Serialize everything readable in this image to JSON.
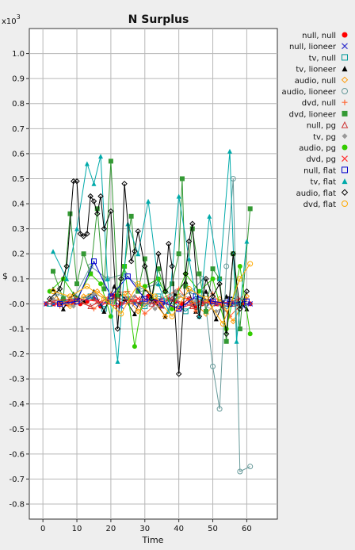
{
  "chart_data": {
    "type": "line",
    "title": "N Surplus",
    "xlabel": "Time",
    "ylabel": "$",
    "y_multiplier": "x10",
    "y_multiplier_exp": "3",
    "xlim": [
      -4,
      69
    ],
    "ylim": [
      -0.86,
      1.1
    ],
    "x_ticks": [
      0,
      10,
      20,
      30,
      40,
      50,
      60
    ],
    "y_ticks": [
      1.0,
      0.9,
      0.8,
      0.7,
      0.6,
      0.5,
      0.4,
      0.3,
      0.2,
      0.1,
      0.0,
      -0.1,
      -0.2,
      -0.3,
      -0.4,
      -0.5,
      -0.6,
      -0.7,
      -0.8
    ],
    "y_tick_labels": [
      "1.0",
      "0.9",
      "0.8",
      "0.7",
      "0.6",
      "0.5",
      "0.4",
      "0.3",
      "0.2",
      "0.1",
      "-0.0",
      "-0.1",
      "-0.2",
      "-0.3",
      "-0.4",
      "-0.5",
      "-0.6",
      "-0.7",
      "-0.8"
    ],
    "grid": true,
    "legend_position": "right",
    "series": [
      {
        "name": "null, null",
        "color": "#ff0000",
        "marker": "circle-filled",
        "x": [
          1,
          3,
          5,
          7,
          9,
          11,
          13,
          15,
          17,
          19,
          21,
          23,
          25,
          27,
          29,
          31,
          33,
          35,
          37,
          39,
          41,
          43,
          45,
          47,
          49,
          51,
          53,
          55,
          57,
          59,
          61
        ],
        "y": [
          0,
          0,
          0,
          0,
          0,
          0,
          0.01,
          0.02,
          -0.01,
          0.01,
          0.03,
          0,
          0.02,
          0.01,
          0,
          0.03,
          0.01,
          -0.01,
          0.02,
          0.01,
          0,
          0.02,
          -0.01,
          0,
          0.01,
          0,
          -0.01,
          0,
          0,
          0,
          0
        ]
      },
      {
        "name": "null, lioneer",
        "color": "#3333cc",
        "marker": "x",
        "x": [
          1,
          3,
          5,
          7,
          9,
          11,
          13,
          15,
          17,
          19,
          21,
          23,
          25,
          27,
          29,
          31,
          33,
          35,
          37,
          39,
          41,
          43,
          45,
          47,
          49,
          51,
          53,
          55,
          57,
          59,
          61
        ],
        "y": [
          0,
          0,
          0,
          0,
          0.01,
          0.01,
          0.02,
          0.03,
          0,
          0.01,
          0.01,
          -0.01,
          0.02,
          0,
          0.01,
          0.01,
          0,
          -0.01,
          0.01,
          0.02,
          -0.02,
          0.01,
          0,
          0.01,
          0,
          0,
          0.01,
          0.02,
          0,
          -0.01,
          0
        ]
      },
      {
        "name": "tv, null",
        "color": "#009999",
        "marker": "square-open",
        "x": [
          2,
          6,
          10,
          14,
          18,
          22,
          26,
          30,
          34,
          38,
          42,
          46,
          50,
          54,
          58
        ],
        "y": [
          0,
          0.01,
          0.02,
          0.03,
          -0.02,
          0.04,
          0.01,
          -0.01,
          0.03,
          0.01,
          -0.03,
          0.02,
          0.01,
          -0.02,
          0.01
        ]
      },
      {
        "name": "tv, lioneer",
        "color": "#000000",
        "marker": "triangle-filled",
        "x": [
          3,
          6,
          9,
          12,
          15,
          18,
          21,
          24,
          27,
          30,
          33,
          36,
          39,
          42,
          45,
          48,
          51,
          54,
          57,
          60
        ],
        "y": [
          0.06,
          -0.02,
          0.04,
          0.01,
          0.05,
          -0.03,
          0.07,
          0.02,
          -0.04,
          0.06,
          0.01,
          -0.05,
          0.04,
          0.09,
          -0.03,
          0.05,
          -0.06,
          0.03,
          0.02,
          -0.02
        ]
      },
      {
        "name": "audio, null",
        "color": "#ff9900",
        "marker": "diamond-open",
        "x": [
          4,
          8,
          12,
          16,
          20,
          24,
          28,
          32,
          36,
          40,
          44,
          48,
          52,
          56,
          60
        ],
        "y": [
          0.02,
          -0.01,
          0.03,
          0.05,
          0.01,
          0.04,
          -0.03,
          0.02,
          -0.05,
          0.03,
          0.01,
          -0.04,
          0.02,
          -0.07,
          0.03
        ]
      },
      {
        "name": "audio, lioneer",
        "color": "#669999",
        "marker": "circle-open",
        "x": [
          4,
          9,
          14,
          19,
          24,
          29,
          34,
          39,
          44,
          47,
          50,
          52,
          54,
          56,
          58,
          61
        ],
        "y": [
          0.04,
          0.02,
          0.15,
          0.1,
          0.12,
          0.06,
          0.08,
          0.02,
          0.05,
          0.1,
          -0.25,
          -0.42,
          0.15,
          0.5,
          -0.67,
          -0.65
        ]
      },
      {
        "name": "dvd, null",
        "color": "#ff6633",
        "marker": "plus",
        "x": [
          5,
          10,
          15,
          20,
          25,
          30,
          35,
          40,
          45,
          50,
          55,
          60
        ],
        "y": [
          -0.01,
          0.02,
          -0.02,
          0.04,
          0.05,
          -0.04,
          0.02,
          0.06,
          -0.03,
          0.04,
          -0.05,
          0.02
        ]
      },
      {
        "name": "dvd, lioneer",
        "color": "#339933",
        "marker": "square-filled",
        "x": [
          3,
          6,
          8,
          10,
          12,
          14,
          16,
          18,
          20,
          22,
          24,
          26,
          28,
          30,
          32,
          34,
          36,
          38,
          40,
          41,
          42,
          44,
          46,
          48,
          50,
          52,
          54,
          56,
          58,
          61
        ],
        "y": [
          0.13,
          0.02,
          0.36,
          0.08,
          0.2,
          0.12,
          0.38,
          0.06,
          0.57,
          0.03,
          0.15,
          0.35,
          0.05,
          0.18,
          0.02,
          0.14,
          0.05,
          0.08,
          0.2,
          0.5,
          0.07,
          0.3,
          0.12,
          -0.03,
          0.14,
          0.1,
          -0.15,
          0.2,
          -0.1,
          0.38
        ]
      },
      {
        "name": "null, pg",
        "color": "#cc3333",
        "marker": "triangle-open",
        "x": [
          2,
          8,
          14,
          20,
          26,
          32,
          38,
          44,
          50,
          56
        ],
        "y": [
          0.01,
          0.02,
          -0.01,
          0.03,
          0.01,
          0,
          0.02,
          -0.01,
          0.01,
          0
        ]
      },
      {
        "name": "tv, pg",
        "color": "#999999",
        "marker": "diamond-filled",
        "x": [
          3,
          9,
          15,
          21,
          27,
          33,
          39,
          45,
          51,
          57
        ],
        "y": [
          0.02,
          -0.01,
          0.04,
          0.01,
          0.03,
          -0.02,
          0.05,
          0.01,
          -0.03,
          0.02
        ]
      },
      {
        "name": "audio, pg",
        "color": "#33cc00",
        "marker": "circle-filled",
        "x": [
          2,
          6,
          10,
          14,
          17,
          20,
          24,
          27,
          30,
          34,
          38,
          42,
          46,
          50,
          54,
          58,
          61
        ],
        "y": [
          0.05,
          0.1,
          0.02,
          0.12,
          0.08,
          -0.05,
          0.15,
          -0.17,
          0.07,
          0.1,
          -0.02,
          0.12,
          0.05,
          0.1,
          -0.1,
          0.15,
          -0.12
        ]
      },
      {
        "name": "dvd, pg",
        "color": "#ff3333",
        "marker": "x",
        "x": [
          4,
          10,
          16,
          22,
          28,
          34,
          40,
          46,
          52,
          58
        ],
        "y": [
          0,
          0.02,
          0.01,
          -0.01,
          0.02,
          0.01,
          -0.02,
          0.01,
          0,
          0.02
        ]
      },
      {
        "name": "null, flat",
        "color": "#0000cc",
        "marker": "square-open",
        "x": [
          5,
          10,
          15,
          20,
          25,
          30,
          35,
          40,
          45,
          50,
          55,
          60
        ],
        "y": [
          0,
          0.01,
          0.17,
          0.03,
          0.11,
          0.02,
          0.01,
          -0.02,
          0.03,
          0.01,
          0,
          0.01
        ]
      },
      {
        "name": "tv, flat",
        "color": "#00aaaa",
        "marker": "triangle-filled",
        "x": [
          3,
          7,
          10,
          13,
          15,
          17,
          19,
          22,
          25,
          28,
          31,
          34,
          37,
          40,
          43,
          46,
          49,
          52,
          55,
          57,
          60
        ],
        "y": [
          0.21,
          0.1,
          0.3,
          0.56,
          0.48,
          0.59,
          0.1,
          -0.23,
          0.32,
          0.2,
          0.41,
          0.08,
          -0.03,
          0.43,
          0.18,
          -0.05,
          0.35,
          0.1,
          0.61,
          -0.15,
          0.25
        ]
      },
      {
        "name": "audio, flat",
        "color": "#000000",
        "marker": "diamond-open",
        "x": [
          2,
          5,
          7,
          9,
          10,
          11,
          12,
          13,
          14,
          15,
          16,
          17,
          18,
          20,
          22,
          23,
          24,
          26,
          27,
          28,
          30,
          32,
          34,
          36,
          37,
          38,
          40,
          42,
          43,
          44,
          46,
          48,
          50,
          52,
          54,
          56,
          58,
          60
        ],
        "y": [
          0.02,
          0.06,
          0.15,
          0.49,
          0.49,
          0.28,
          0.27,
          0.28,
          0.43,
          0.41,
          0.36,
          0.43,
          0.3,
          0.37,
          -0.1,
          0.1,
          0.48,
          0.17,
          0.21,
          0.29,
          0.15,
          0.02,
          0.2,
          0.05,
          0.24,
          0.15,
          -0.28,
          0.12,
          0.25,
          0.32,
          -0.05,
          0.1,
          0.03,
          0.08,
          -0.12,
          0.2,
          -0.02,
          0.05
        ]
      },
      {
        "name": "dvd, flat",
        "color": "#ffaa00",
        "marker": "circle-open",
        "x": [
          3,
          8,
          13,
          18,
          23,
          28,
          33,
          38,
          43,
          48,
          53,
          58,
          61
        ],
        "y": [
          0.05,
          0.03,
          0.07,
          0.02,
          -0.04,
          0.08,
          0.03,
          -0.05,
          0.06,
          0.02,
          -0.08,
          0.1,
          0.16
        ]
      }
    ]
  }
}
